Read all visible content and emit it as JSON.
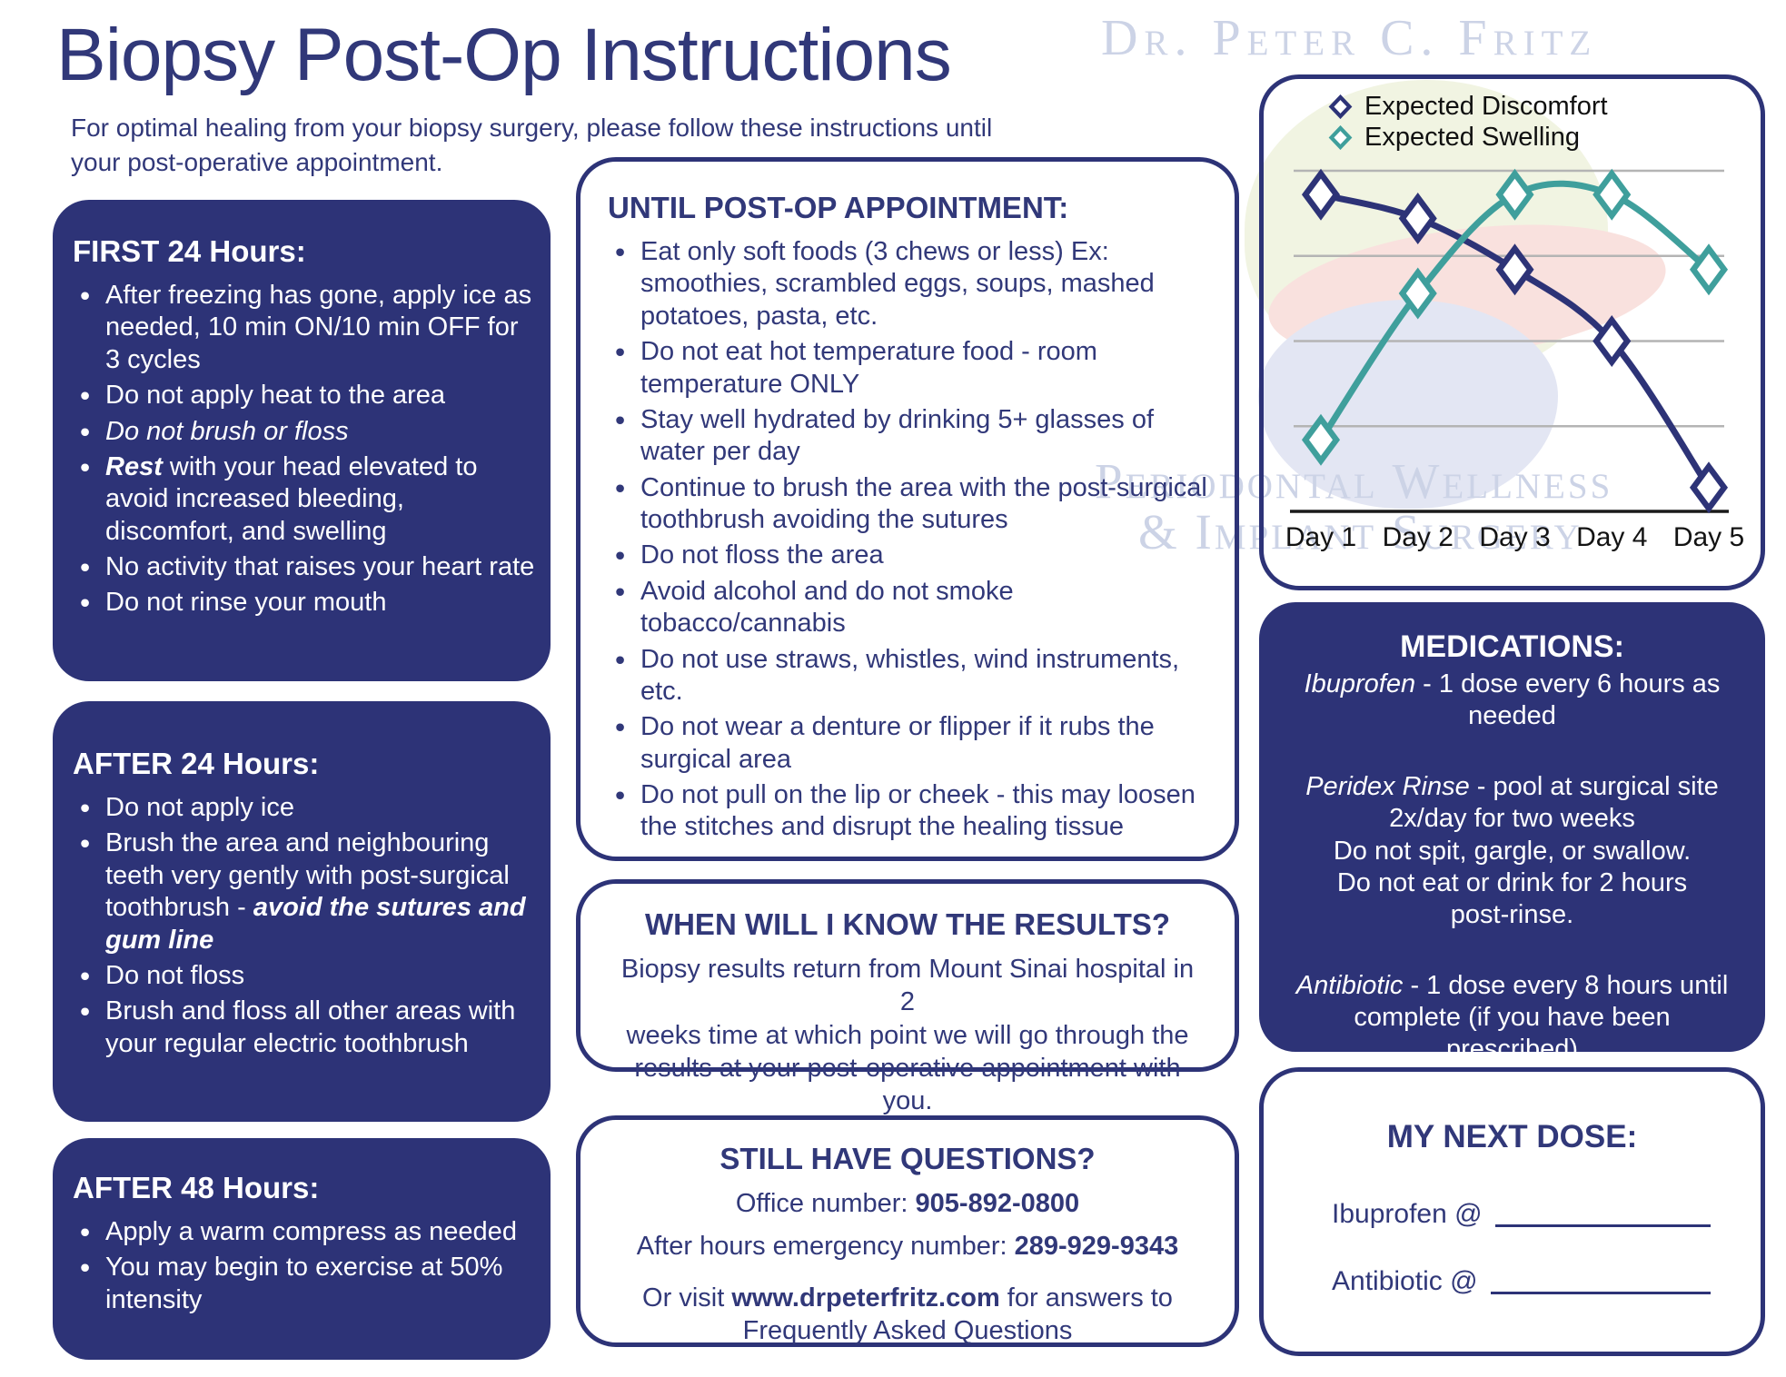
{
  "header": {
    "title": "Biopsy Post-Op Instructions",
    "subtitle_line1": "For optimal healing from your biopsy surgery, please follow these instructions until",
    "subtitle_line2": "your post-operative appointment.",
    "doctor_watermark": "Dr. Peter C. Fritz",
    "clinic_watermark_line1": "Periodontal Wellness",
    "clinic_watermark_line2": "& Implant Surgery"
  },
  "colors": {
    "navy": "#2d3377",
    "navy_text": "#313879",
    "teal": "#3f9f9c",
    "grid": "#b4b4b4",
    "axis": "#1a1a1a",
    "ghost": "#ccd3e6",
    "logo_green": "#f1f4e2",
    "logo_pink": "#f9e1de",
    "logo_lavender": "#e3e6f3"
  },
  "left_column": {
    "first24": {
      "title": "FIRST 24 Hours:",
      "items": [
        [
          {
            "t": "After freezing has gone, apply ice as needed, 10 min ON/10 min OFF for 3 cycles"
          }
        ],
        [
          {
            "t": "Do not apply heat to the area"
          }
        ],
        [
          {
            "t": "Do not brush or floss",
            "s": "i"
          }
        ],
        [
          {
            "t": "Rest",
            "s": "bi"
          },
          {
            "t": " with your head elevated to avoid increased bleeding, discomfort, and swelling"
          }
        ],
        [
          {
            "t": "No activity that raises your heart rate"
          }
        ],
        [
          {
            "t": "Do not rinse your mouth"
          }
        ]
      ]
    },
    "after24": {
      "title": "AFTER 24 Hours:",
      "items": [
        [
          {
            "t": "Do not apply ice"
          }
        ],
        [
          {
            "t": "Brush the area and neighbouring teeth very gently with post-surgical toothbrush - "
          },
          {
            "t": "avoid the sutures and gum line",
            "s": "bi"
          }
        ],
        [
          {
            "t": "Do not floss"
          }
        ],
        [
          {
            "t": "Brush and floss all other areas with your regular electric toothbrush"
          }
        ]
      ]
    },
    "after48": {
      "title": "AFTER 48 Hours:",
      "items": [
        [
          {
            "t": "Apply a warm compress as needed"
          }
        ],
        [
          {
            "t": "You may begin to exercise at 50% intensity"
          }
        ]
      ]
    }
  },
  "middle_column": {
    "until_postop": {
      "title": "UNTIL POST-OP APPOINTMENT:",
      "items": [
        [
          {
            "t": "Eat only soft foods (3 chews or less) Ex: smoothies, scrambled eggs, soups, mashed potatoes, pasta, etc."
          }
        ],
        [
          {
            "t": "Do not eat hot temperature food - room temperature ONLY"
          }
        ],
        [
          {
            "t": "Stay well hydrated by drinking 5+ glasses of water per day"
          }
        ],
        [
          {
            "t": "Continue to brush the area with the post-surgical toothbrush avoiding the sutures"
          }
        ],
        [
          {
            "t": "Do not floss the area"
          }
        ],
        [
          {
            "t": "Avoid alcohol and do not smoke tobacco/cannabis"
          }
        ],
        [
          {
            "t": "Do not use straws, whistles, wind instruments, etc."
          }
        ],
        [
          {
            "t": "Do not wear a denture or flipper if it rubs the surgical area"
          }
        ],
        [
          {
            "t": "Do not pull on the lip or cheek - this may loosen the stitches and disrupt the healing tissue"
          }
        ]
      ]
    },
    "results": {
      "title": "WHEN WILL I KNOW THE RESULTS?",
      "body": [
        {
          "t": "Biopsy results return from Mount Sinai hospital in 2"
        },
        {
          "br": 1
        },
        {
          "t": "weeks time at which point we will go through the"
        },
        {
          "br": 1
        },
        {
          "t": "results at your post-operative appointment with you."
        }
      ]
    },
    "questions": {
      "title": "STILL HAVE QUESTIONS?",
      "lines": [
        [
          {
            "t": "Office number: "
          },
          {
            "t": "905-892-0800",
            "s": "b"
          }
        ],
        [
          {
            "t": "After hours emergency number: "
          },
          {
            "t": "289-929-9343",
            "s": "b"
          }
        ],
        [
          {
            "t": "Or visit "
          },
          {
            "t": "www.drpeterfritz.com",
            "s": "b"
          },
          {
            "t": " for answers to"
          },
          {
            "br": 1
          },
          {
            "t": "Frequently Asked Questions"
          }
        ]
      ]
    }
  },
  "right_column": {
    "medications": {
      "title": "MEDICATIONS:",
      "entries": [
        [
          {
            "t": "Ibuprofen",
            "s": "i"
          },
          {
            "t": "  - 1 dose every 6 hours as"
          },
          {
            "br": 1
          },
          {
            "t": "needed"
          }
        ],
        [
          {
            "t": "Peridex Rinse",
            "s": "i"
          },
          {
            "t": " - pool at surgical site"
          },
          {
            "br": 1
          },
          {
            "t": "2x/day for two weeks"
          },
          {
            "br": 1
          },
          {
            "t": "Do not spit, gargle, or swallow."
          },
          {
            "br": 1
          },
          {
            "t": "Do not eat or drink for 2 hours"
          },
          {
            "br": 1
          },
          {
            "t": "post-rinse."
          }
        ],
        [
          {
            "t": "Antibiotic",
            "s": "i"
          },
          {
            "t": " - 1 dose every 8 hours until"
          },
          {
            "br": 1
          },
          {
            "t": "complete (if you have been prescribed)"
          }
        ]
      ]
    },
    "next_dose": {
      "title": "MY NEXT DOSE:",
      "rows": [
        {
          "label": "Ibuprofen @"
        },
        {
          "label": "Antibiotic @"
        }
      ]
    }
  },
  "chart_data": {
    "type": "line",
    "categories": [
      "Day 1",
      "Day 2",
      "Day 3",
      "Day 4",
      "Day 5"
    ],
    "series": [
      {
        "name": "Expected Discomfort",
        "color": "#2d3377",
        "values": [
          93,
          86,
          71,
          50,
          7
        ]
      },
      {
        "name": "Expected Swelling",
        "color": "#3f9f9c",
        "values": [
          21,
          64,
          93,
          93,
          71
        ]
      }
    ],
    "title": "",
    "xlabel": "",
    "ylabel": "",
    "ylim": [
      0,
      100
    ],
    "gridline_values": [
      25,
      50,
      75,
      100
    ],
    "grid": true,
    "legend_position": "top",
    "marker": "diamond"
  }
}
